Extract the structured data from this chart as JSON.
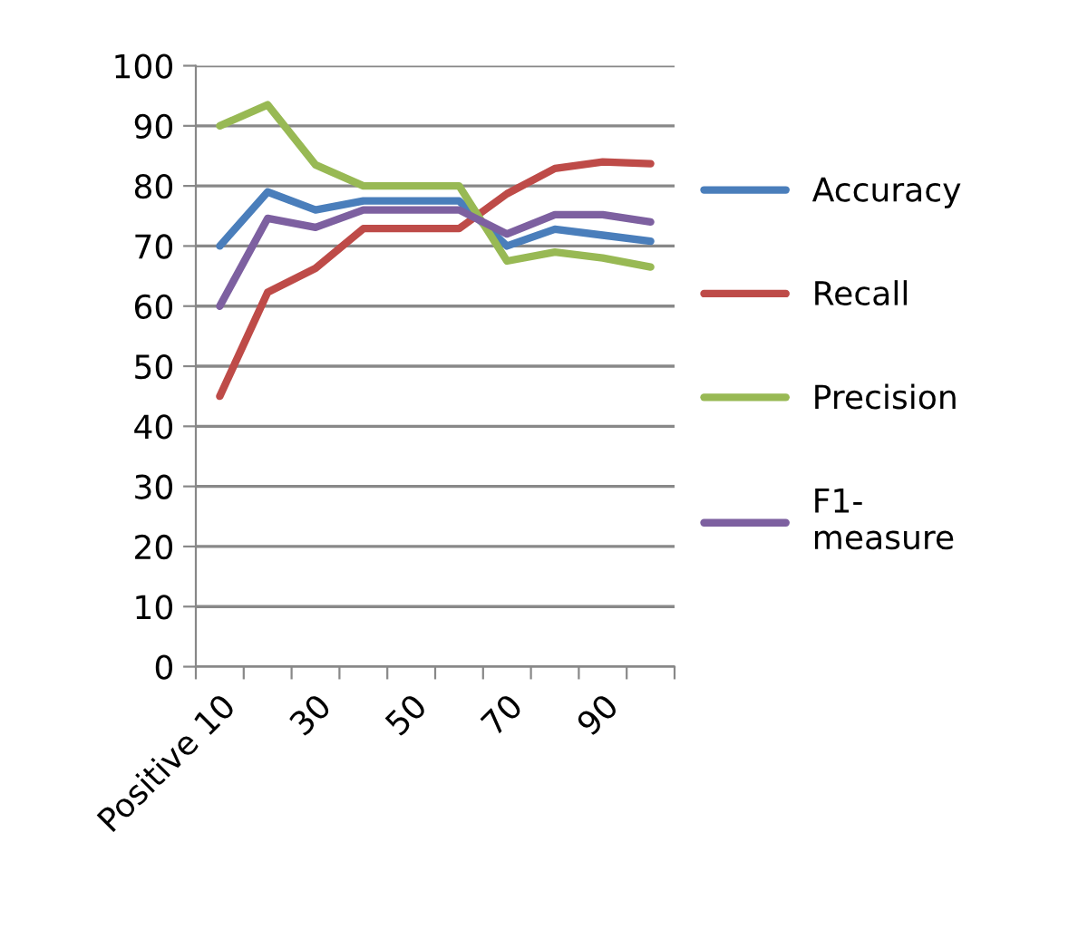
{
  "chart_data": {
    "type": "line",
    "categories": [
      "Positive 10",
      null,
      "30",
      null,
      "50",
      null,
      "70",
      null,
      "90",
      null
    ],
    "series": [
      {
        "name": "Accuracy",
        "color": "#4a7ebb",
        "values": [
          70,
          79,
          76,
          77.5,
          77.5,
          77.5,
          70,
          72.8,
          71.8,
          70.8
        ]
      },
      {
        "name": "Recall",
        "color": "#be4b48",
        "values": [
          45,
          62.3,
          66.3,
          72.9,
          72.9,
          72.9,
          78.7,
          82.9,
          84,
          83.7
        ]
      },
      {
        "name": "Precision",
        "color": "#98b954",
        "values": [
          90,
          93.5,
          83.5,
          80,
          80,
          80,
          67.5,
          69,
          68,
          66.5
        ]
      },
      {
        "name": "F1-\nmeasure",
        "color": "#7d60a0",
        "values": [
          60,
          74.6,
          73.1,
          76,
          76,
          76,
          72,
          75.2,
          75.2,
          74
        ]
      }
    ],
    "ylim": [
      0,
      100
    ],
    "yticks": [
      0,
      10,
      20,
      30,
      40,
      50,
      60,
      70,
      80,
      90,
      100
    ],
    "grid": "y",
    "legend": "right",
    "marker": "none",
    "line_style": "solid"
  }
}
